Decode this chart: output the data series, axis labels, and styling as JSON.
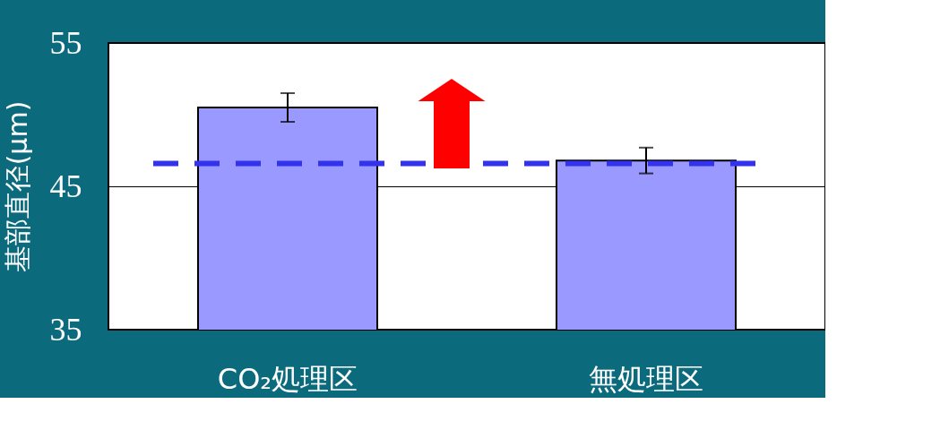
{
  "chart_data": {
    "type": "bar",
    "categories": [
      "CO₂処理区",
      "無処理区"
    ],
    "values": [
      50.5,
      46.8
    ],
    "errors": [
      1.0,
      0.9
    ],
    "colors": [
      "#9999ff",
      "#9999ff"
    ],
    "ylabel": "基部直径(μm)",
    "ylim": [
      35,
      55
    ],
    "yticks": [
      35,
      45,
      55
    ],
    "grid": "y",
    "ref_lines": [
      {
        "axis": "y",
        "value": 46.6,
        "color": "#3333ee",
        "line_style": "dashed"
      }
    ]
  }
}
